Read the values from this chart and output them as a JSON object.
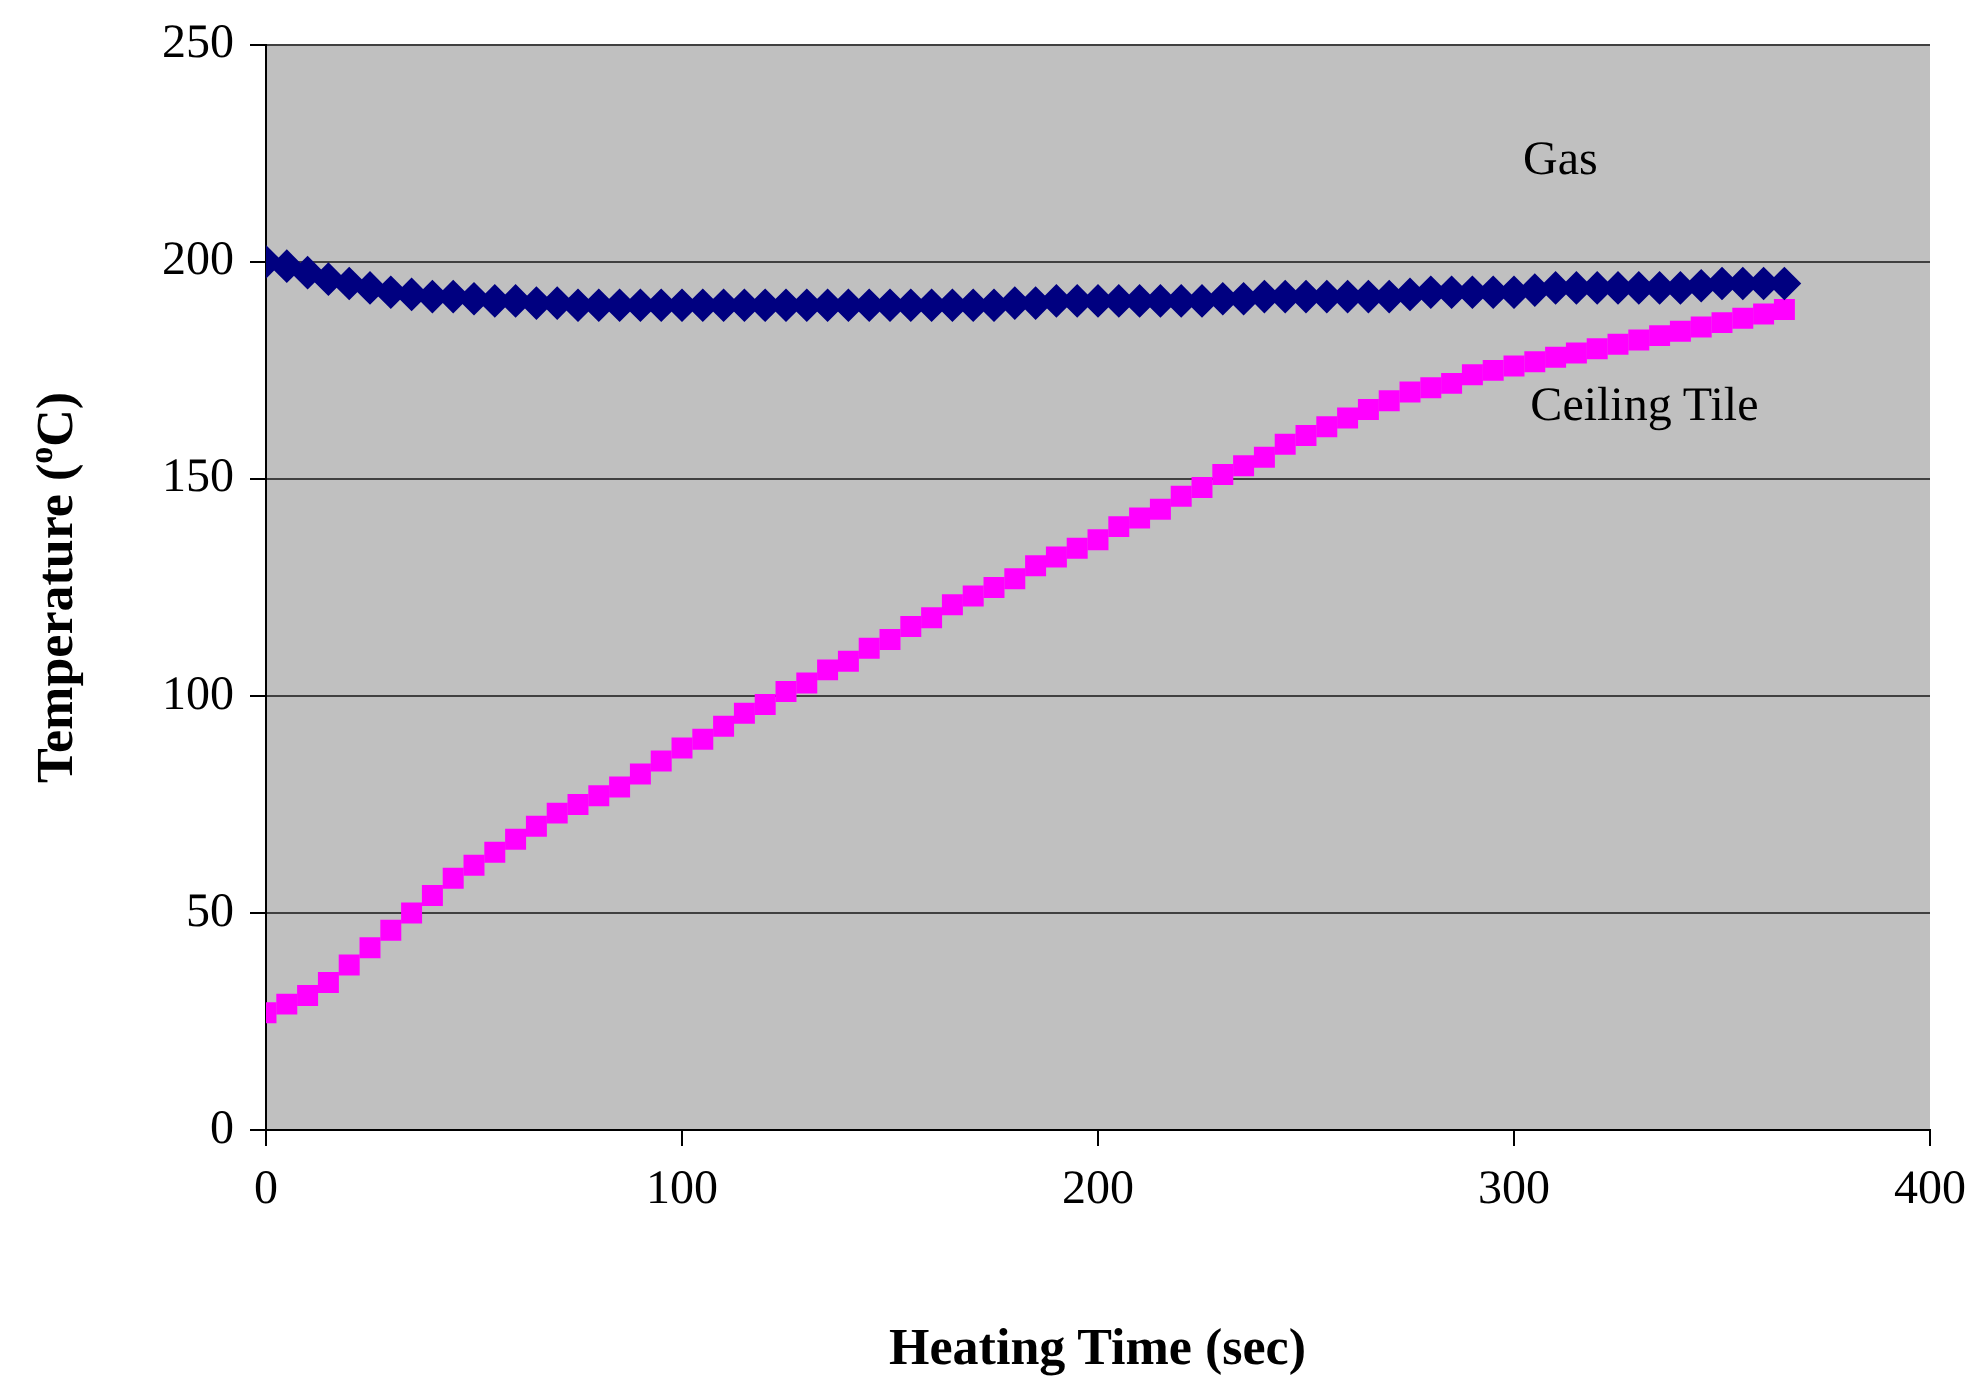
{
  "chart_data": {
    "type": "scatter",
    "xlabel": "Heating Time (sec)",
    "ylabel": "Temperature ($^{o}$C)",
    "x": [
      0,
      5,
      10,
      15,
      20,
      25,
      30,
      35,
      40,
      45,
      50,
      55,
      60,
      65,
      70,
      75,
      80,
      85,
      90,
      95,
      100,
      105,
      110,
      115,
      120,
      125,
      130,
      135,
      140,
      145,
      150,
      155,
      160,
      165,
      170,
      175,
      180,
      185,
      190,
      195,
      200,
      205,
      210,
      215,
      220,
      225,
      230,
      235,
      240,
      245,
      250,
      255,
      260,
      265,
      270,
      275,
      280,
      285,
      290,
      295,
      300,
      305,
      310,
      315,
      320,
      325,
      330,
      335,
      340,
      345,
      350,
      355,
      360,
      365
    ],
    "series": [
      {
        "name": "Gas",
        "color": "#000080",
        "marker": "diamond",
        "values": [
          200,
          199,
          197.5,
          196,
          195,
          194,
          193,
          192.5,
          192,
          192,
          191.5,
          191,
          191,
          190.5,
          190.5,
          190,
          190,
          190,
          190,
          190,
          190,
          190,
          190,
          190,
          190,
          190,
          190,
          190,
          190,
          190,
          190,
          190,
          190,
          190,
          190,
          190,
          190.5,
          190.5,
          191,
          191,
          191,
          191,
          191,
          191,
          191,
          191,
          191.5,
          191.5,
          192,
          192,
          192,
          192,
          192,
          192,
          192,
          192.5,
          193,
          193,
          193,
          193,
          193,
          193.5,
          194,
          194,
          194,
          194,
          194,
          194,
          194,
          194.5,
          195,
          195,
          195,
          195
        ]
      },
      {
        "name": "Ceiling Tile",
        "color": "#ff00ff",
        "marker": "square",
        "values": [
          27,
          29,
          31,
          34,
          38,
          42,
          46,
          50,
          54,
          58,
          61,
          64,
          67,
          70,
          73,
          75,
          77,
          79,
          82,
          85,
          88,
          90,
          93,
          96,
          98,
          101,
          103,
          106,
          108,
          111,
          113,
          116,
          118,
          121,
          123,
          125,
          127,
          130,
          132,
          134,
          136,
          139,
          141,
          143,
          146,
          148,
          151,
          153,
          155,
          158,
          160,
          162,
          164,
          166,
          168,
          170,
          171,
          172,
          174,
          175,
          176,
          177,
          178,
          179,
          180,
          181,
          182,
          183,
          184,
          185,
          186,
          187,
          188,
          189
        ]
      }
    ],
    "xlim": [
      0,
      400
    ],
    "xticks": [
      0,
      100,
      200,
      300,
      400
    ],
    "ylim": [
      0,
      250
    ],
    "yticks": [
      0,
      50,
      100,
      150,
      200,
      250
    ],
    "grid": "y",
    "legend": false
  }
}
